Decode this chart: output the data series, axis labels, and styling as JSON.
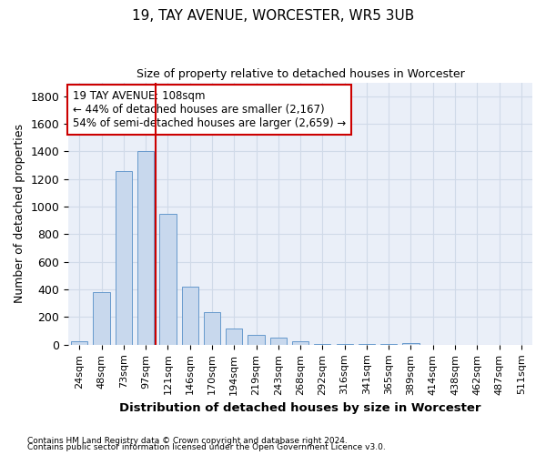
{
  "title": "19, TAY AVENUE, WORCESTER, WR5 3UB",
  "subtitle": "Size of property relative to detached houses in Worcester",
  "xlabel": "Distribution of detached houses by size in Worcester",
  "ylabel": "Number of detached properties",
  "footnote1": "Contains HM Land Registry data © Crown copyright and database right 2024.",
  "footnote2": "Contains public sector information licensed under the Open Government Licence v3.0.",
  "annotation_line1": "19 TAY AVENUE: 108sqm",
  "annotation_line2": "← 44% of detached houses are smaller (2,167)",
  "annotation_line3": "54% of semi-detached houses are larger (2,659) →",
  "categories": [
    "24sqm",
    "48sqm",
    "73sqm",
    "97sqm",
    "121sqm",
    "146sqm",
    "170sqm",
    "194sqm",
    "219sqm",
    "243sqm",
    "268sqm",
    "292sqm",
    "316sqm",
    "341sqm",
    "365sqm",
    "389sqm",
    "414sqm",
    "438sqm",
    "462sqm",
    "487sqm",
    "511sqm"
  ],
  "values": [
    25,
    380,
    1260,
    1400,
    950,
    420,
    235,
    115,
    70,
    50,
    25,
    5,
    5,
    5,
    3,
    15,
    2,
    2,
    2,
    2,
    2
  ],
  "bar_color": "#c8d8ed",
  "bar_edge_color": "#6699cc",
  "vline_color": "#cc0000",
  "vline_x_index": 4,
  "ylim": [
    0,
    1900
  ],
  "yticks": [
    0,
    200,
    400,
    600,
    800,
    1000,
    1200,
    1400,
    1600,
    1800
  ],
  "grid_color": "#d0dae8",
  "bg_color": "#ffffff",
  "plot_bg_color": "#eaeff8",
  "annotation_box_facecolor": "#ffffff",
  "annotation_border_color": "#cc0000",
  "title_fontsize": 11,
  "subtitle_fontsize": 9
}
